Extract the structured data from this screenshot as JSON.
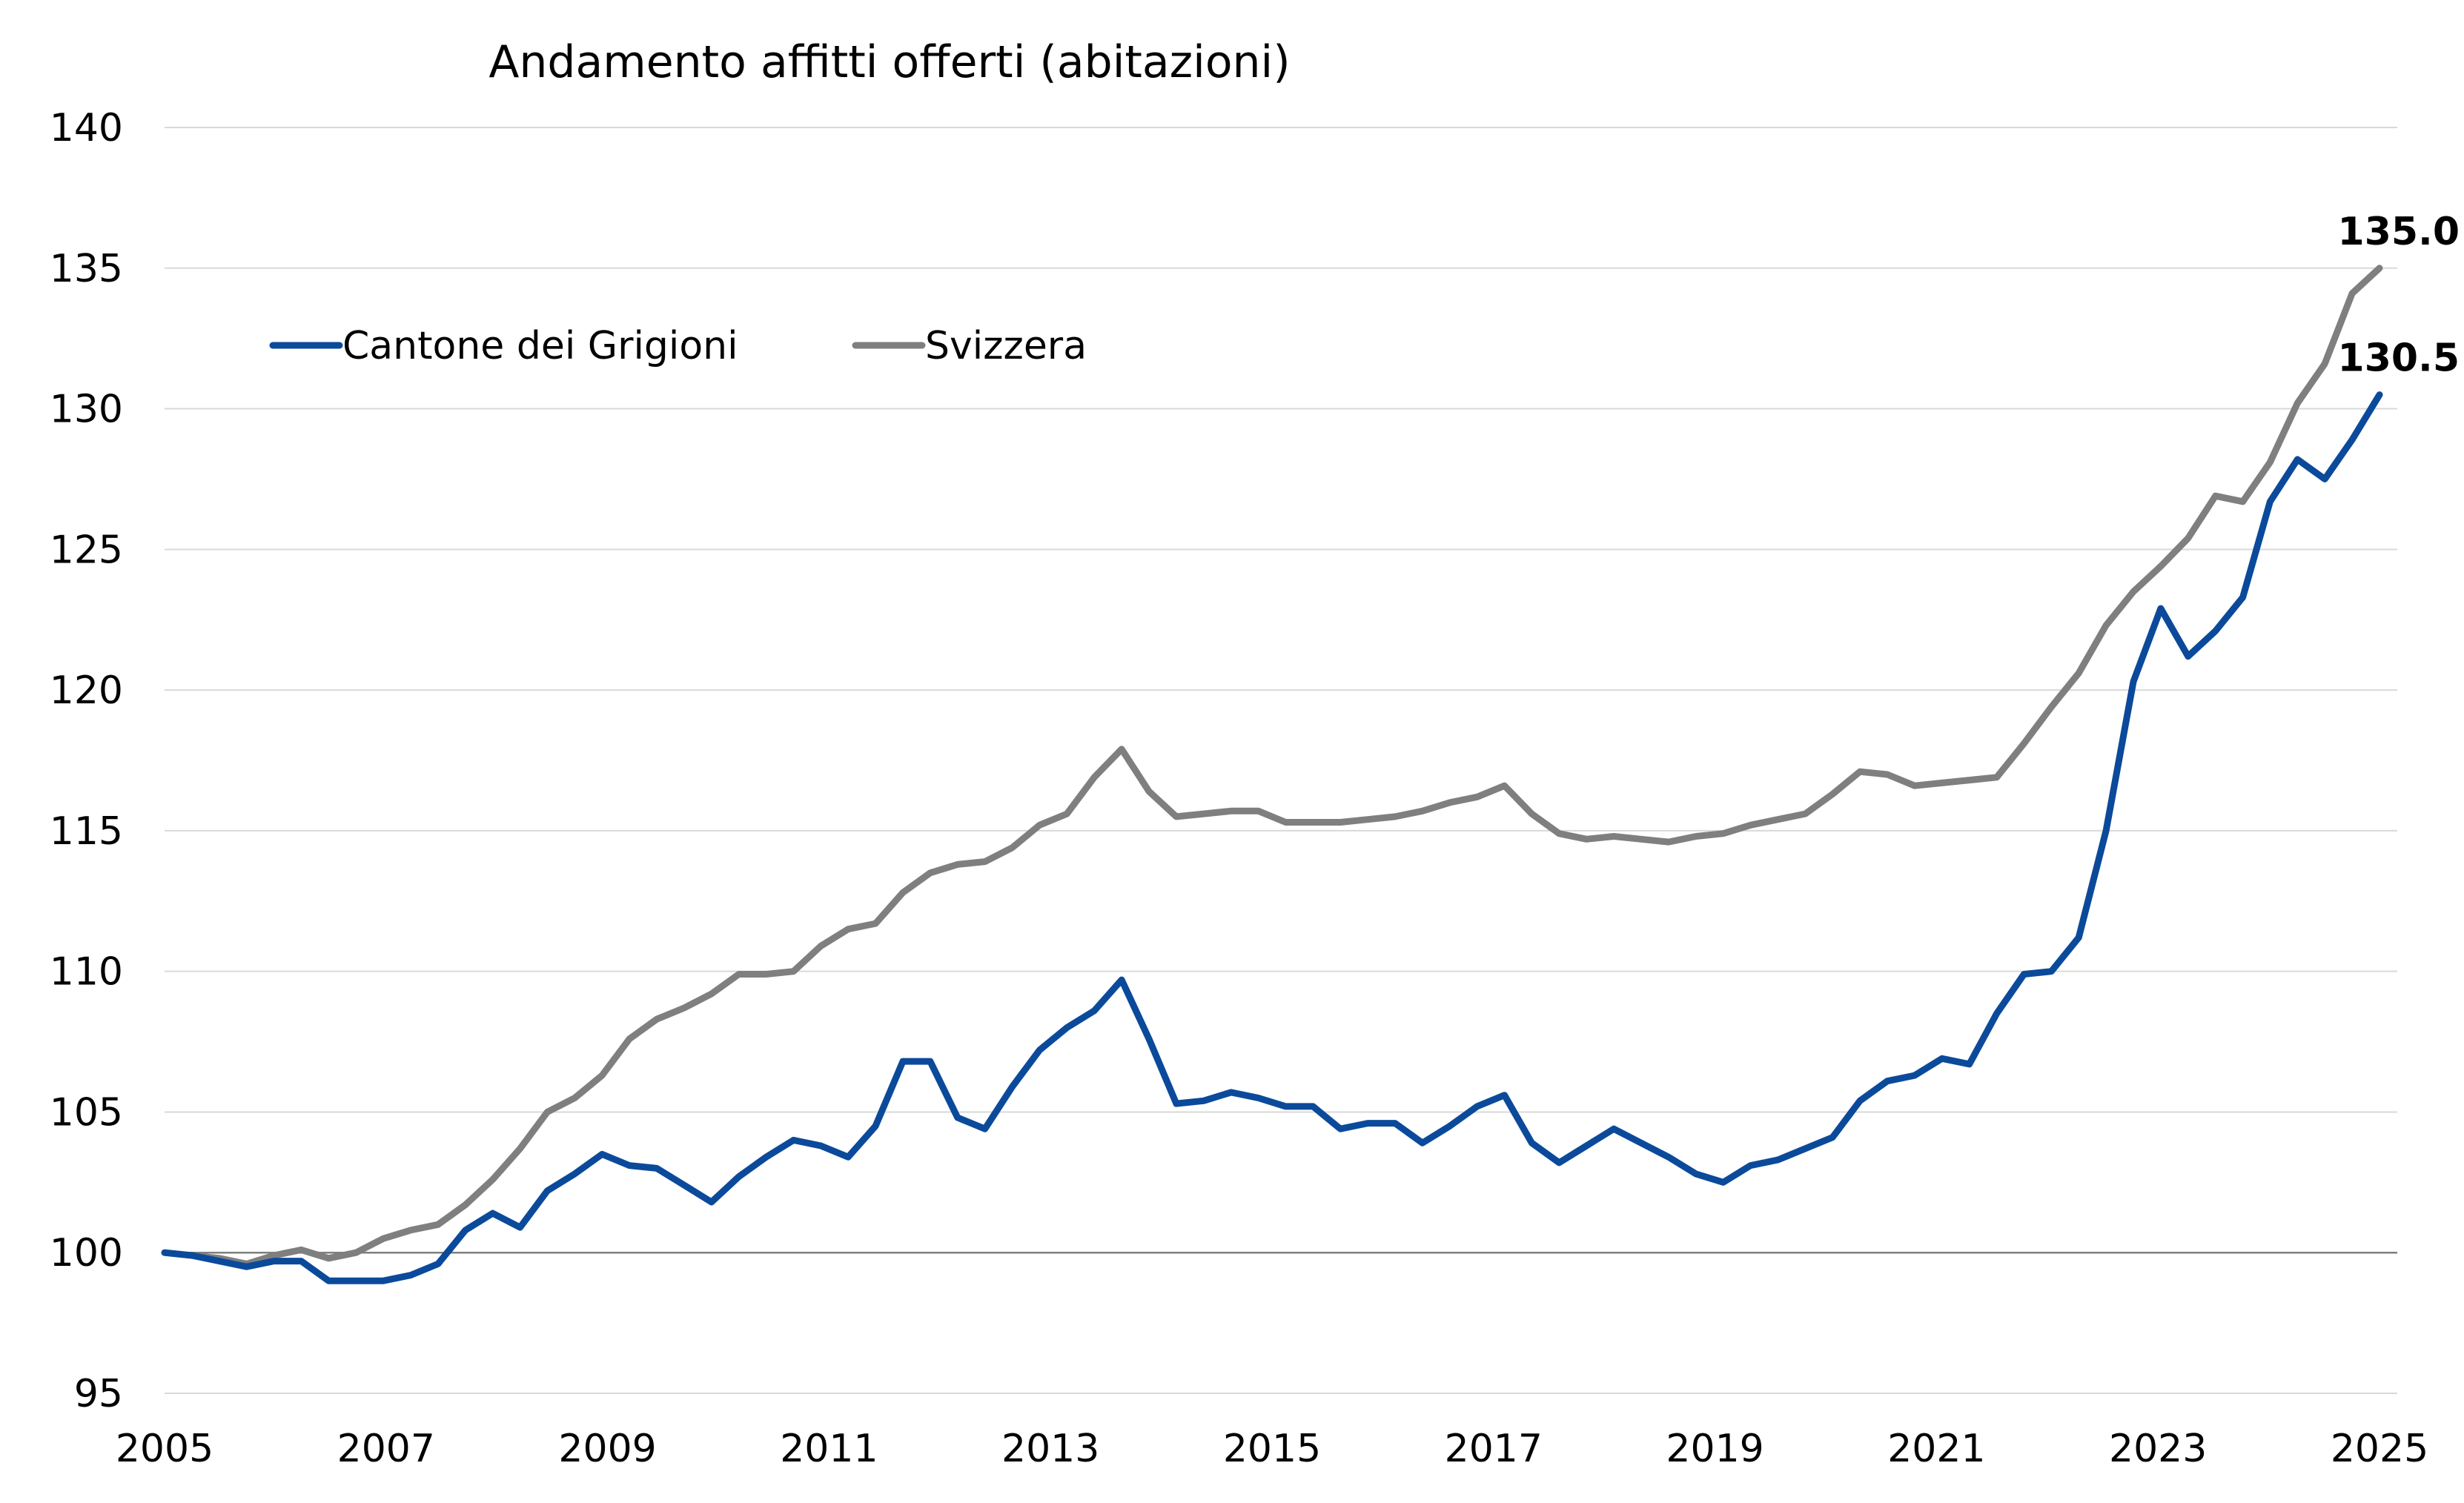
{
  "chart_data": {
    "type": "line",
    "title": "Andamento affitti offerti (abitazioni)",
    "xlabel": "",
    "ylabel": "",
    "ylim": [
      95,
      140
    ],
    "yticks": [
      "95",
      "100",
      "105",
      "110",
      "115",
      "120",
      "125",
      "130",
      "135",
      "140"
    ],
    "xlim": [
      2005,
      2025.25
    ],
    "xticks": [
      "2005",
      "2007",
      "2009",
      "2011",
      "2013",
      "2015",
      "2017",
      "2019",
      "2021",
      "2023",
      "2025"
    ],
    "grid": true,
    "legend_position": "top-left",
    "series": [
      {
        "name": "Cantone dei Grigioni",
        "color": "#0b4a9b",
        "end_label": "130.5",
        "points": [
          [
            2005.0,
            100.0
          ],
          [
            2005.25,
            99.9
          ],
          [
            2005.5,
            99.7
          ],
          [
            2005.75,
            99.5
          ],
          [
            2006.0,
            99.7
          ],
          [
            2006.25,
            99.7
          ],
          [
            2006.5,
            99.0
          ],
          [
            2006.75,
            99.0
          ],
          [
            2007.0,
            99.0
          ],
          [
            2007.25,
            99.2
          ],
          [
            2007.5,
            99.6
          ],
          [
            2007.75,
            100.8
          ],
          [
            2008.0,
            101.4
          ],
          [
            2008.25,
            100.9
          ],
          [
            2008.5,
            102.2
          ],
          [
            2008.75,
            102.8
          ],
          [
            2009.0,
            103.5
          ],
          [
            2009.25,
            103.1
          ],
          [
            2009.5,
            103.0
          ],
          [
            2009.75,
            102.4
          ],
          [
            2010.0,
            101.8
          ],
          [
            2010.25,
            102.7
          ],
          [
            2010.5,
            103.4
          ],
          [
            2010.75,
            104.0
          ],
          [
            2011.0,
            103.8
          ],
          [
            2011.25,
            103.4
          ],
          [
            2011.5,
            104.5
          ],
          [
            2011.75,
            106.8
          ],
          [
            2012.0,
            106.8
          ],
          [
            2012.25,
            104.8
          ],
          [
            2012.5,
            104.4
          ],
          [
            2012.75,
            105.9
          ],
          [
            2013.0,
            107.2
          ],
          [
            2013.25,
            108.0
          ],
          [
            2013.5,
            108.6
          ],
          [
            2013.75,
            109.7
          ],
          [
            2014.0,
            107.6
          ],
          [
            2014.25,
            105.3
          ],
          [
            2014.5,
            105.4
          ],
          [
            2014.75,
            105.7
          ],
          [
            2015.0,
            105.5
          ],
          [
            2015.25,
            105.2
          ],
          [
            2015.5,
            105.2
          ],
          [
            2015.75,
            104.4
          ],
          [
            2016.0,
            104.6
          ],
          [
            2016.25,
            104.6
          ],
          [
            2016.5,
            103.9
          ],
          [
            2016.75,
            104.5
          ],
          [
            2017.0,
            105.2
          ],
          [
            2017.25,
            105.6
          ],
          [
            2017.5,
            103.9
          ],
          [
            2017.75,
            103.2
          ],
          [
            2018.0,
            103.8
          ],
          [
            2018.25,
            104.4
          ],
          [
            2018.5,
            103.9
          ],
          [
            2018.75,
            103.4
          ],
          [
            2019.0,
            102.8
          ],
          [
            2019.25,
            102.5
          ],
          [
            2019.5,
            103.1
          ],
          [
            2019.75,
            103.3
          ],
          [
            2020.0,
            103.7
          ],
          [
            2020.25,
            104.1
          ],
          [
            2020.5,
            105.4
          ],
          [
            2020.75,
            106.1
          ],
          [
            2021.0,
            106.3
          ],
          [
            2021.25,
            106.9
          ],
          [
            2021.5,
            106.7
          ],
          [
            2021.75,
            108.5
          ],
          [
            2022.0,
            109.9
          ],
          [
            2022.25,
            110.0
          ],
          [
            2022.5,
            111.2
          ],
          [
            2022.75,
            115.0
          ],
          [
            2023.0,
            120.3
          ],
          [
            2023.25,
            122.9
          ],
          [
            2023.5,
            121.2
          ],
          [
            2023.75,
            122.1
          ],
          [
            2024.0,
            123.3
          ],
          [
            2024.25,
            126.7
          ],
          [
            2024.5,
            128.2
          ],
          [
            2024.75,
            127.5
          ],
          [
            2025.0,
            128.9
          ],
          [
            2025.25,
            130.5
          ]
        ]
      },
      {
        "name": "Svizzera",
        "color": "#7f7f7f",
        "end_label": "135.0",
        "points": [
          [
            2005.0,
            100.0
          ],
          [
            2005.25,
            99.9
          ],
          [
            2005.5,
            99.8
          ],
          [
            2005.75,
            99.6
          ],
          [
            2006.0,
            99.9
          ],
          [
            2006.25,
            100.1
          ],
          [
            2006.5,
            99.8
          ],
          [
            2006.75,
            100.0
          ],
          [
            2007.0,
            100.5
          ],
          [
            2007.25,
            100.8
          ],
          [
            2007.5,
            101.0
          ],
          [
            2007.75,
            101.7
          ],
          [
            2008.0,
            102.6
          ],
          [
            2008.25,
            103.7
          ],
          [
            2008.5,
            105.0
          ],
          [
            2008.75,
            105.5
          ],
          [
            2009.0,
            106.3
          ],
          [
            2009.25,
            107.6
          ],
          [
            2009.5,
            108.3
          ],
          [
            2009.75,
            108.7
          ],
          [
            2010.0,
            109.2
          ],
          [
            2010.25,
            109.9
          ],
          [
            2010.5,
            109.9
          ],
          [
            2010.75,
            110.0
          ],
          [
            2011.0,
            110.9
          ],
          [
            2011.25,
            111.5
          ],
          [
            2011.5,
            111.7
          ],
          [
            2011.75,
            112.8
          ],
          [
            2012.0,
            113.5
          ],
          [
            2012.25,
            113.8
          ],
          [
            2012.5,
            113.9
          ],
          [
            2012.75,
            114.4
          ],
          [
            2013.0,
            115.2
          ],
          [
            2013.25,
            115.6
          ],
          [
            2013.5,
            116.9
          ],
          [
            2013.75,
            117.9
          ],
          [
            2014.0,
            116.4
          ],
          [
            2014.25,
            115.5
          ],
          [
            2014.5,
            115.6
          ],
          [
            2014.75,
            115.7
          ],
          [
            2015.0,
            115.7
          ],
          [
            2015.25,
            115.3
          ],
          [
            2015.5,
            115.3
          ],
          [
            2015.75,
            115.3
          ],
          [
            2016.0,
            115.4
          ],
          [
            2016.25,
            115.5
          ],
          [
            2016.5,
            115.7
          ],
          [
            2016.75,
            116.0
          ],
          [
            2017.0,
            116.2
          ],
          [
            2017.25,
            116.6
          ],
          [
            2017.5,
            115.6
          ],
          [
            2017.75,
            114.9
          ],
          [
            2018.0,
            114.7
          ],
          [
            2018.25,
            114.8
          ],
          [
            2018.5,
            114.7
          ],
          [
            2018.75,
            114.6
          ],
          [
            2019.0,
            114.8
          ],
          [
            2019.25,
            114.9
          ],
          [
            2019.5,
            115.2
          ],
          [
            2019.75,
            115.4
          ],
          [
            2020.0,
            115.6
          ],
          [
            2020.25,
            116.3
          ],
          [
            2020.5,
            117.1
          ],
          [
            2020.75,
            117.0
          ],
          [
            2021.0,
            116.6
          ],
          [
            2021.25,
            116.7
          ],
          [
            2021.5,
            116.8
          ],
          [
            2021.75,
            116.9
          ],
          [
            2022.0,
            118.1
          ],
          [
            2022.25,
            119.4
          ],
          [
            2022.5,
            120.6
          ],
          [
            2022.75,
            122.3
          ],
          [
            2023.0,
            123.5
          ],
          [
            2023.25,
            124.4
          ],
          [
            2023.5,
            125.4
          ],
          [
            2023.75,
            126.9
          ],
          [
            2024.0,
            126.7
          ],
          [
            2024.25,
            128.1
          ],
          [
            2024.5,
            130.2
          ],
          [
            2024.75,
            131.6
          ],
          [
            2025.0,
            134.1
          ],
          [
            2025.25,
            135.0
          ]
        ]
      }
    ]
  }
}
